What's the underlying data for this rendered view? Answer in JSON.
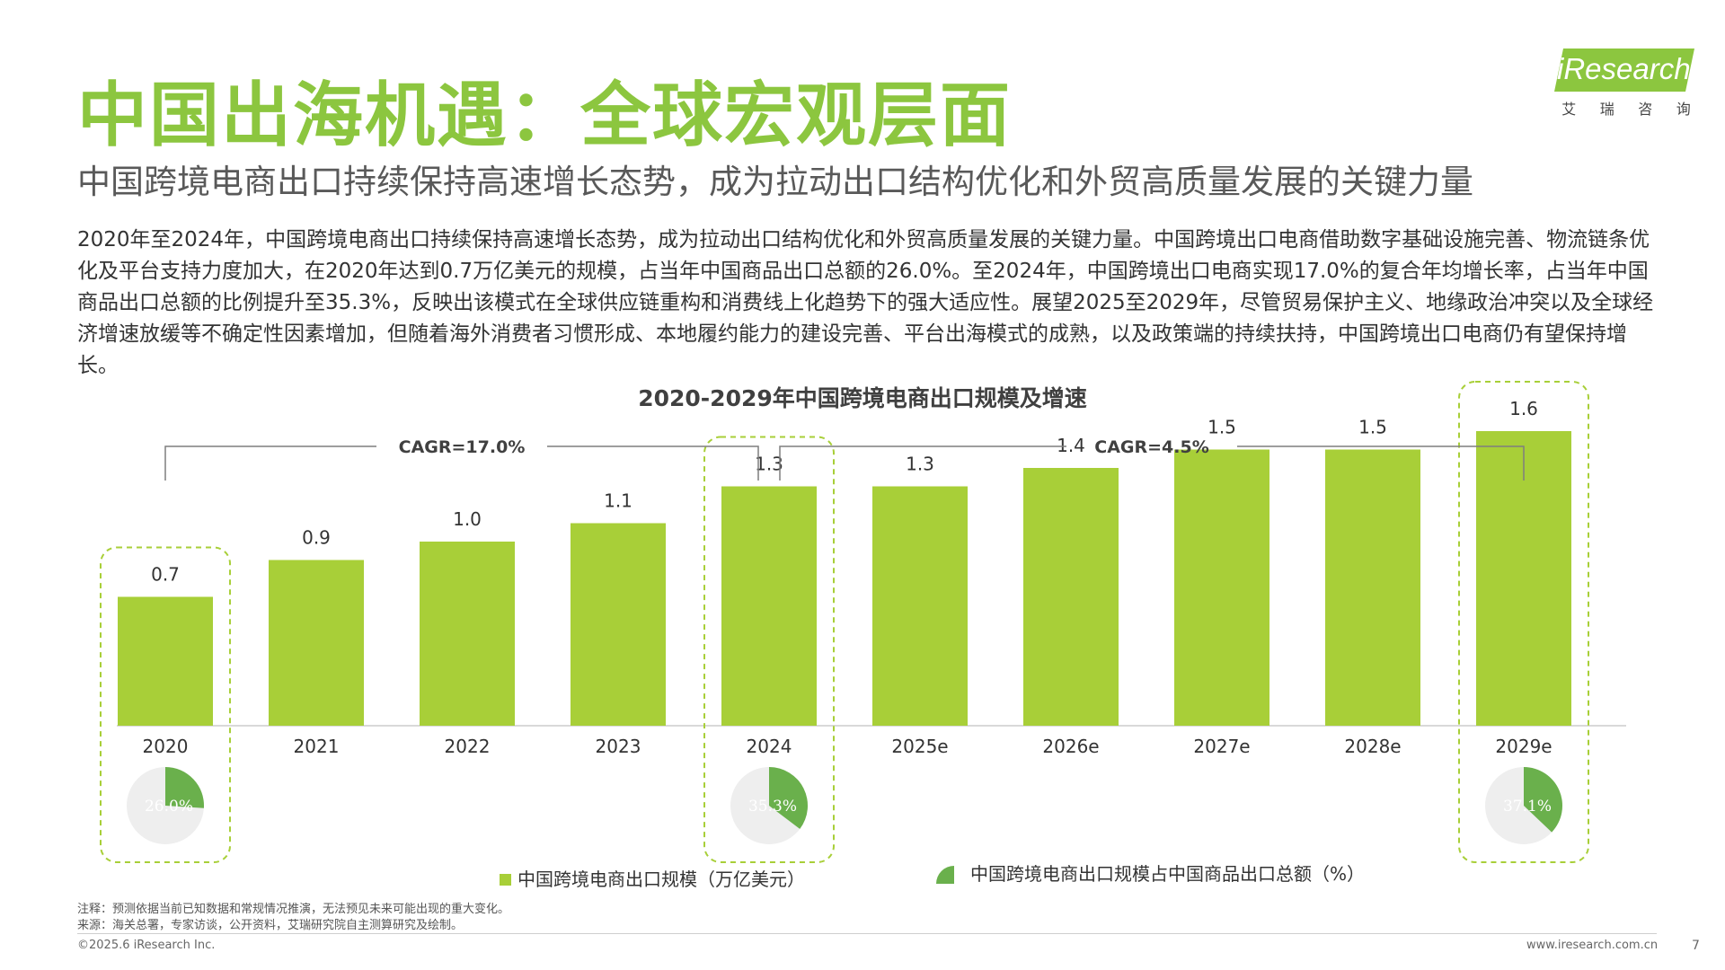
{
  "header": {
    "title": "中国出海机遇：全球宏观层面",
    "subtitle": "中国跨境电商出口持续保持高速增长态势，成为拉动出口结构优化和外贸高质量发展的关键力量"
  },
  "logo": {
    "name": "iResearch",
    "subtitle_chars": [
      "艾",
      "瑞",
      "咨",
      "询"
    ],
    "color": "#8cc63f"
  },
  "description": "2020年至2024年，中国跨境电商出口持续保持高速增长态势，成为拉动出口结构优化和外贸高质量发展的关键力量。中国跨境出口电商借助数字基础设施完善、物流链条优化及平台支持力度加大，在2020年达到0.7万亿美元的规模，占当年中国商品出口总额的26.0%。至2024年，中国跨境出口电商实现17.0%的复合年均增长率，占当年中国商品出口总额的比例提升至35.3%，反映出该模式在全球供应链重构和消费线上化趋势下的强大适应性。展望2025至2029年，尽管贸易保护主义、地缘政治冲突以及全球经济增速放缓等不确定性因素增加，但随着海外消费者习惯形成、本地履约能力的建设完善、平台出海模式的成熟，以及政策端的持续扶持，中国跨境出口电商仍有望保持增长。",
  "chart_data": {
    "type": "bar",
    "title": "2020-2029年中国跨境电商出口规模及增速",
    "categories": [
      "2020",
      "2021",
      "2022",
      "2023",
      "2024",
      "2025e",
      "2026e",
      "2027e",
      "2028e",
      "2029e"
    ],
    "series": [
      {
        "name": "中国跨境电商出口规模（万亿美元）",
        "values": [
          0.7,
          0.9,
          1.0,
          1.1,
          1.3,
          1.3,
          1.4,
          1.5,
          1.5,
          1.6
        ],
        "value_labels": [
          "0.7",
          "0.9",
          "1.0",
          "1.1",
          "1.3",
          "1.3",
          "1.4",
          "1.5",
          "1.5",
          "1.6"
        ],
        "color": "#a8cf38"
      }
    ],
    "share_series": {
      "name": "中国跨境电商出口规模占中国商品出口总额（%）",
      "points": [
        {
          "category": "2020",
          "value": 26.0,
          "label": "26.0%"
        },
        {
          "category": "2024",
          "value": 35.3,
          "label": "35.3%"
        },
        {
          "category": "2029e",
          "value": 37.1,
          "label": "37.1%"
        }
      ],
      "color": "#6ab04c",
      "remainder_color": "#eeeeee"
    },
    "highlighted_categories": [
      "2020",
      "2024",
      "2029e"
    ],
    "cagr_annotations": [
      {
        "label": "CAGR=17.0%",
        "from": "2020",
        "to": "2024"
      },
      {
        "label": "CAGR=4.5%",
        "from": "2024",
        "to": "2029e"
      }
    ],
    "legend_position": "bottom",
    "grid": false
  },
  "footnotes": {
    "note": "注释：预测依据当前已知数据和常规情况推演，无法预见未来可能出现的重大变化。",
    "source": "来源：海关总署，专家访谈，公开资料，艾瑞研究院自主测算研究及绘制。"
  },
  "footer": {
    "copyright": "©2025.6 iResearch Inc.",
    "website": "www.iresearch.com.cn",
    "page": "7"
  }
}
